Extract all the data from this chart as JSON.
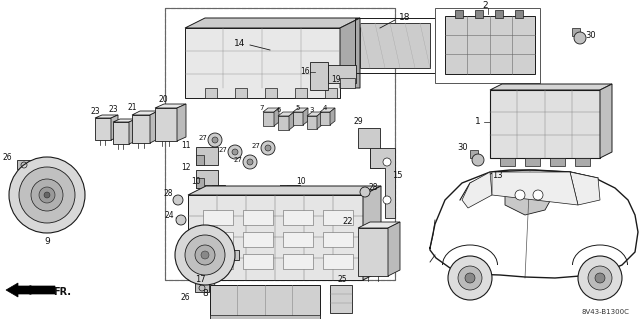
{
  "bg_color": "#f0f0f0",
  "line_color": "#1a1a1a",
  "text_color": "#111111",
  "figsize": [
    6.4,
    3.19
  ],
  "dpi": 100,
  "diagram_ref": "8V43-B1300C",
  "fr_label": "FR.",
  "parts_border_color": "#888888",
  "shade_color": "#999999",
  "light_shade": "#cccccc",
  "mid_shade": "#aaaaaa"
}
